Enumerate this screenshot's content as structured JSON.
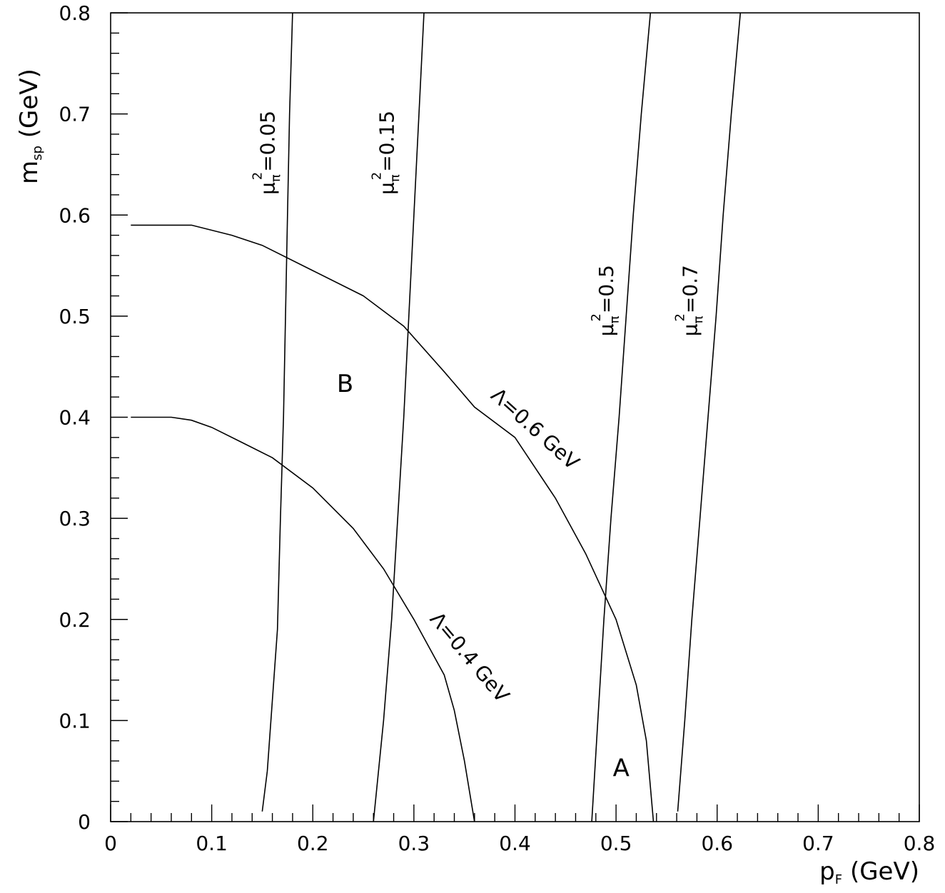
{
  "chart_data": {
    "type": "line",
    "title": "",
    "xlabel": "p",
    "xlabel_sub": "F",
    "xlabel_unit": "(GeV)",
    "ylabel": "m",
    "ylabel_sub": "sp",
    "ylabel_unit": "(GeV)",
    "xlim": [
      0,
      0.8
    ],
    "ylim": [
      0,
      0.8
    ],
    "x_major_ticks": [
      0,
      0.1,
      0.2,
      0.3,
      0.4,
      0.5,
      0.6,
      0.7,
      0.8
    ],
    "x_tick_labels": [
      "0",
      "0.1",
      "0.2",
      "0.3",
      "0.4",
      "0.5",
      "0.6",
      "0.7",
      "0.8"
    ],
    "y_major_ticks": [
      0,
      0.1,
      0.2,
      0.3,
      0.4,
      0.5,
      0.6,
      0.7,
      0.8
    ],
    "y_tick_labels": [
      "0",
      "0.1",
      "0.2",
      "0.3",
      "0.4",
      "0.5",
      "0.6",
      "0.7",
      "0.8"
    ],
    "grid": false,
    "series": [
      {
        "label_sym": "μ",
        "label_sub": "π",
        "label_sup": "2",
        "label_value": "=0.05",
        "points": [
          [
            0.15,
            0.01
          ],
          [
            0.155,
            0.05
          ],
          [
            0.16,
            0.12
          ],
          [
            0.165,
            0.19
          ],
          [
            0.168,
            0.3
          ],
          [
            0.171,
            0.4
          ],
          [
            0.173,
            0.5
          ],
          [
            0.175,
            0.6
          ],
          [
            0.177,
            0.7
          ],
          [
            0.18,
            0.8
          ]
        ]
      },
      {
        "label_sym": "μ",
        "label_sub": "π",
        "label_sup": "2",
        "label_value": "=0.15",
        "points": [
          [
            0.26,
            0.0
          ],
          [
            0.27,
            0.1
          ],
          [
            0.278,
            0.2
          ],
          [
            0.284,
            0.3
          ],
          [
            0.29,
            0.4
          ],
          [
            0.295,
            0.5
          ],
          [
            0.3,
            0.6
          ],
          [
            0.305,
            0.7
          ],
          [
            0.31,
            0.8
          ]
        ]
      },
      {
        "label_sym": "μ",
        "label_sub": "π",
        "label_sup": "2",
        "label_value": "=0.5",
        "points": [
          [
            0.476,
            0.0
          ],
          [
            0.482,
            0.1
          ],
          [
            0.488,
            0.2
          ],
          [
            0.495,
            0.3
          ],
          [
            0.503,
            0.4
          ],
          [
            0.51,
            0.5
          ],
          [
            0.517,
            0.6
          ],
          [
            0.525,
            0.7
          ],
          [
            0.534,
            0.8
          ]
        ]
      },
      {
        "label_sym": "μ",
        "label_sub": "π",
        "label_sup": "2",
        "label_value": "=0.7",
        "points": [
          [
            0.561,
            0.01
          ],
          [
            0.568,
            0.1
          ],
          [
            0.575,
            0.2
          ],
          [
            0.583,
            0.3
          ],
          [
            0.591,
            0.4
          ],
          [
            0.599,
            0.5
          ],
          [
            0.606,
            0.6
          ],
          [
            0.614,
            0.7
          ],
          [
            0.623,
            0.8
          ]
        ]
      },
      {
        "label_sym": "Λ",
        "label_value": "=0.4 GeV",
        "points": [
          [
            0.02,
            0.4
          ],
          [
            0.06,
            0.4
          ],
          [
            0.08,
            0.397
          ],
          [
            0.1,
            0.39
          ],
          [
            0.13,
            0.375
          ],
          [
            0.16,
            0.36
          ],
          [
            0.2,
            0.33
          ],
          [
            0.24,
            0.29
          ],
          [
            0.27,
            0.25
          ],
          [
            0.3,
            0.2
          ],
          [
            0.33,
            0.145
          ],
          [
            0.34,
            0.11
          ],
          [
            0.35,
            0.06
          ],
          [
            0.36,
            0.0
          ]
        ]
      },
      {
        "label_sym": "Λ",
        "label_value": "=0.6 GeV",
        "points": [
          [
            0.02,
            0.59
          ],
          [
            0.08,
            0.59
          ],
          [
            0.12,
            0.58
          ],
          [
            0.15,
            0.57
          ],
          [
            0.2,
            0.545
          ],
          [
            0.25,
            0.52
          ],
          [
            0.29,
            0.49
          ],
          [
            0.33,
            0.445
          ],
          [
            0.36,
            0.41
          ],
          [
            0.4,
            0.38
          ],
          [
            0.44,
            0.32
          ],
          [
            0.47,
            0.265
          ],
          [
            0.5,
            0.2
          ],
          [
            0.52,
            0.135
          ],
          [
            0.53,
            0.08
          ],
          [
            0.537,
            0.0
          ]
        ]
      }
    ],
    "annotations": [
      {
        "text": "A",
        "x": 0.505,
        "y": 0.045
      },
      {
        "text": "B",
        "x": 0.232,
        "y": 0.425
      }
    ]
  }
}
